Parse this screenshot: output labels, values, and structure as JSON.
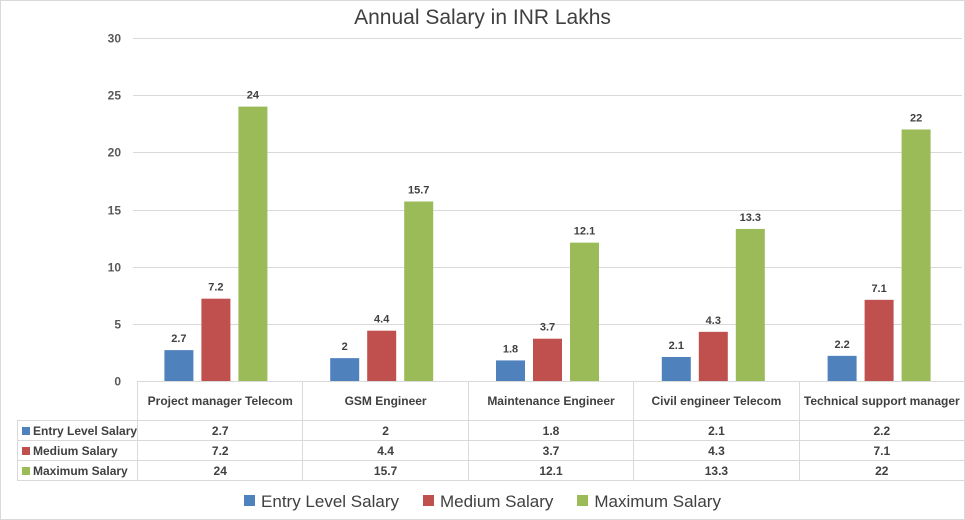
{
  "chart_data": {
    "type": "bar",
    "title": "Annual Salary in INR Lakhs",
    "xlabel": "",
    "ylabel": "",
    "ylim": [
      0,
      30
    ],
    "yticks": [
      0,
      5,
      10,
      15,
      20,
      25,
      30
    ],
    "grid": true,
    "legend_position": "bottom",
    "categories": [
      "Project manager Telecom",
      "GSM Engineer",
      "Maintenance Engineer",
      "Civil engineer Telecom",
      "Technical support manager"
    ],
    "series": [
      {
        "name": "Entry Level Salary",
        "color": "#4f81bd",
        "values": [
          2.7,
          2,
          1.8,
          2.1,
          2.2
        ]
      },
      {
        "name": "Medium Salary",
        "color": "#c0504d",
        "values": [
          7.2,
          4.4,
          3.7,
          4.3,
          7.1
        ]
      },
      {
        "name": "Maximum Salary",
        "color": "#9bbb59",
        "values": [
          24,
          15.7,
          12.1,
          13.3,
          22
        ]
      }
    ],
    "data_table": true
  }
}
